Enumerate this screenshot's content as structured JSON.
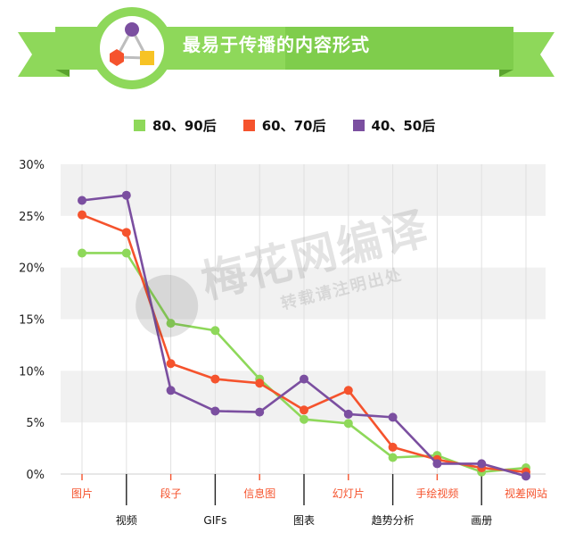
{
  "header": {
    "title": "最易于传播的内容形式",
    "colors": {
      "ribbon": "#8ed85a",
      "ribbon_dark": "#6cc040",
      "badge_ring": "#8ed85a"
    },
    "badge_icon": "triangle-network-icon"
  },
  "watermark": {
    "main": "梅花网编译",
    "sub": "转载请注明出处"
  },
  "chart_data": {
    "type": "line",
    "categories": [
      "图片",
      "视频",
      "段子",
      "GIFs",
      "信息图",
      "图表",
      "幻灯片",
      "趋势分析",
      "手绘视频",
      "画册",
      "视差网站"
    ],
    "series": [
      {
        "name": "80、90后",
        "color": "#8ed85a",
        "values": [
          21.4,
          21.4,
          14.6,
          13.9,
          9.2,
          5.3,
          4.9,
          1.6,
          1.8,
          0.2,
          0.6
        ]
      },
      {
        "name": "60、70后",
        "color": "#f5532d",
        "values": [
          25.1,
          23.4,
          10.7,
          9.2,
          8.8,
          6.2,
          8.1,
          2.6,
          1.4,
          0.6,
          0.2
        ]
      },
      {
        "name": "40、50后",
        "color": "#7b4fa0",
        "values": [
          26.5,
          27.0,
          8.1,
          6.1,
          6.0,
          9.2,
          5.8,
          5.5,
          1.0,
          1.0,
          -0.2
        ]
      }
    ],
    "y_ticks": [
      "0%",
      "5%",
      "10%",
      "15%",
      "20%",
      "25%",
      "30%"
    ],
    "ylim": [
      0,
      30
    ],
    "grid": "horizontal bands",
    "legend": "top-center"
  }
}
